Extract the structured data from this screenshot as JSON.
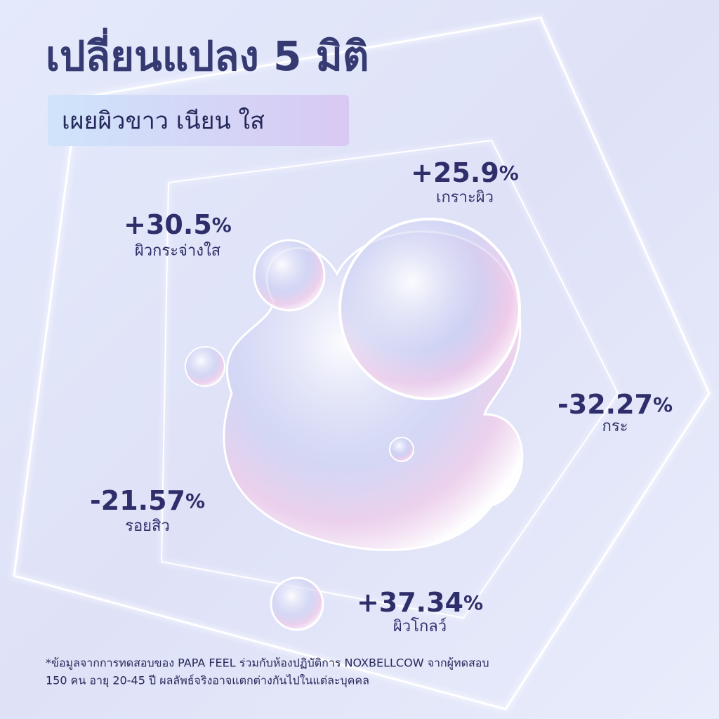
{
  "header": {
    "title": "เปลี่ยนแปลง 5 มิติ",
    "subtitle": "เผยผิวขาว เนียน ใส"
  },
  "stats": [
    {
      "value": "+25.9%",
      "label": "เกราะผิว"
    },
    {
      "value": "+30.5%",
      "label": "ผิวกระจ่างใส"
    },
    {
      "value": "-32.27%",
      "label": "กระ"
    },
    {
      "value": "-21.57%",
      "label": "รอยสิว"
    },
    {
      "value": "+37.34%",
      "label": "ผิวโกลว์"
    }
  ],
  "footnote": [
    "*ข้อมูลจากการทดสอบของ PAPA FEEL ร่วมกับห้องปฏิบัติการ NOXBELLCOW จากผู้ทดสอบ",
    "150 คน อายุ 20-45 ปี ผลลัพธ์จริงอาจแตกต่างกันไปในแต่ละบุคคล"
  ]
}
